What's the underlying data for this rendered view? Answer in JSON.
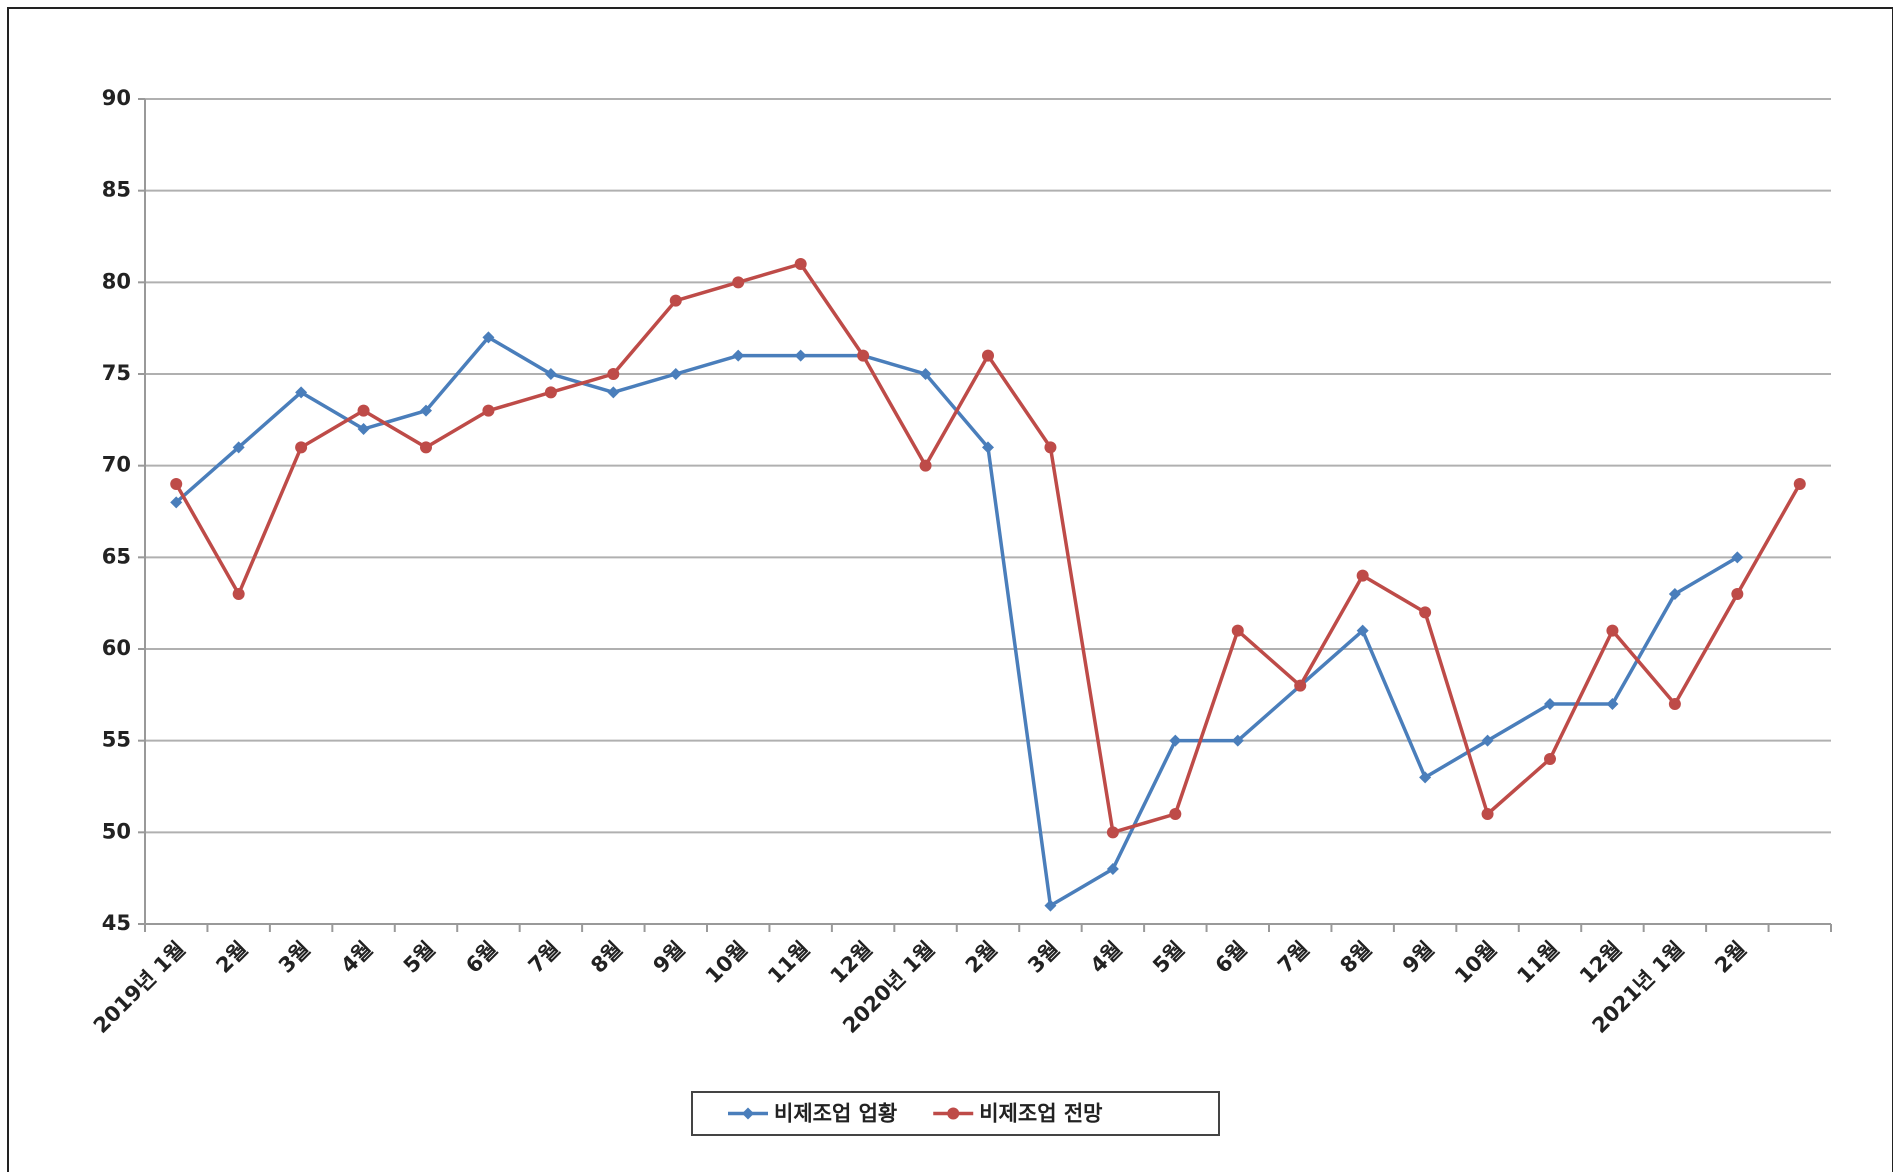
{
  "chart_data": {
    "type": "line",
    "categories": [
      "2019년 1월",
      "2월",
      "3월",
      "4월",
      "5월",
      "6월",
      "7월",
      "8월",
      "9월",
      "10월",
      "11월",
      "12월",
      "2020년 1월",
      "2월",
      "3월",
      "4월",
      "5월",
      "6월",
      "7월",
      "8월",
      "9월",
      "10월",
      "11월",
      "12월",
      "2021년 1월",
      "2월",
      null
    ],
    "series": [
      {
        "name": "비제조업 업황",
        "color": "#4a7ebb",
        "marker": "diamond",
        "values": [
          68,
          71,
          74,
          72,
          73,
          77,
          75,
          74,
          75,
          76,
          76,
          76,
          75,
          71,
          46,
          48,
          55,
          55,
          58,
          61,
          53,
          55,
          57,
          57,
          63,
          65,
          null
        ]
      },
      {
        "name": "비제조업 전망",
        "color": "#be4b48",
        "marker": "circle",
        "values": [
          69,
          63,
          71,
          73,
          71,
          73,
          74,
          75,
          79,
          80,
          81,
          76,
          70,
          76,
          71,
          50,
          51,
          61,
          58,
          64,
          62,
          51,
          54,
          61,
          57,
          63,
          69
        ]
      }
    ],
    "ylim": [
      45,
      90
    ],
    "yticks": [
      45,
      50,
      55,
      60,
      65,
      70,
      75,
      80,
      85,
      90
    ],
    "grid": true,
    "legend": "bottom"
  }
}
